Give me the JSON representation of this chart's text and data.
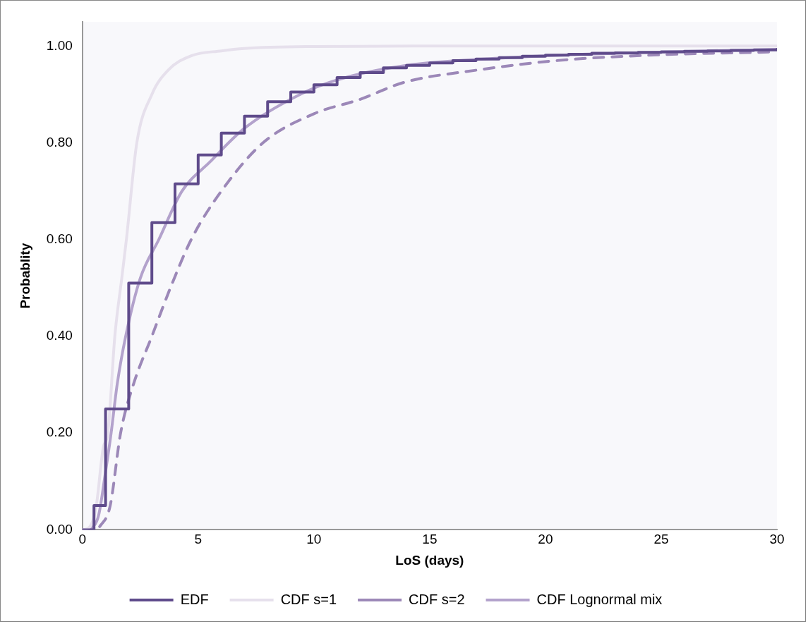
{
  "chart_data": {
    "type": "line",
    "xlabel": "LoS (days)",
    "ylabel": "Probablity",
    "xlim": [
      0,
      30
    ],
    "xticks": [
      0,
      5,
      10,
      15,
      20,
      25,
      30
    ],
    "ylim": [
      0,
      1.05
    ],
    "yticks": [
      {
        "value": 0,
        "label": "0.00"
      },
      {
        "value": 0.2,
        "label": "0.20"
      },
      {
        "value": 0.4,
        "label": "0.40"
      },
      {
        "value": 0.6,
        "label": "0.60"
      },
      {
        "value": 0.8,
        "label": "0.80"
      },
      {
        "value": 1,
        "label": "1.00"
      }
    ],
    "grid": false,
    "legend": "bottom",
    "marker": "none",
    "series": [
      {
        "name": "EDF",
        "type": "step",
        "color": "#5f4b8b",
        "line_style": "solid",
        "x": [
          0,
          0.5,
          1,
          2,
          3,
          4,
          5,
          6,
          7,
          8,
          9,
          10,
          11,
          12,
          13,
          14,
          15,
          16,
          17,
          18,
          19,
          20,
          21,
          22,
          23,
          24,
          25,
          26,
          27,
          28,
          29,
          30
        ],
        "values": [
          0,
          0.05,
          0.25,
          0.51,
          0.635,
          0.715,
          0.775,
          0.82,
          0.855,
          0.885,
          0.905,
          0.92,
          0.935,
          0.945,
          0.955,
          0.96,
          0.965,
          0.97,
          0.973,
          0.976,
          0.979,
          0.981,
          0.983,
          0.985,
          0.986,
          0.987,
          0.988,
          0.989,
          0.99,
          0.991,
          0.992,
          0.993
        ]
      },
      {
        "name": "CDF s=1",
        "color": "#e6e0ec",
        "line_style": "solid",
        "x": [
          0,
          0.3,
          0.6,
          0.9,
          1.1,
          1.4,
          1.7,
          1.9,
          2.35,
          3.0,
          3.7,
          4.7,
          6,
          7,
          10,
          15,
          20,
          25,
          30
        ],
        "values": [
          0,
          0.005,
          0.05,
          0.17,
          0.2,
          0.4,
          0.52,
          0.6,
          0.8,
          0.9,
          0.95,
          0.98,
          0.99,
          0.995,
          0.999,
          1,
          1,
          1,
          1
        ]
      },
      {
        "name": "CDF s=2",
        "color": "#9c88b8",
        "line_style": "dashed",
        "x": [
          0,
          0.5,
          0.8,
          1.2,
          1.65,
          2.2,
          3.0,
          3.8,
          4.7,
          6,
          7.8,
          10,
          12,
          13.9,
          17,
          20.5,
          25,
          30
        ],
        "values": [
          0,
          0,
          0.01,
          0.05,
          0.2,
          0.3,
          0.4,
          0.5,
          0.6,
          0.7,
          0.8,
          0.86,
          0.89,
          0.925,
          0.95,
          0.97,
          0.982,
          0.988
        ]
      },
      {
        "name": "CDF Lognormal mix",
        "color": "#b3a2cc",
        "line_style": "solid",
        "x": [
          0,
          0.4,
          0.7,
          1,
          1.24,
          1.5,
          1.87,
          2.5,
          3.3,
          4.3,
          5.5,
          7,
          9.4,
          11,
          14,
          18,
          21,
          24,
          27,
          30
        ],
        "values": [
          0,
          0.005,
          0.03,
          0.12,
          0.2,
          0.3,
          0.4,
          0.52,
          0.6,
          0.7,
          0.76,
          0.83,
          0.9,
          0.93,
          0.96,
          0.975,
          0.982,
          0.986,
          0.99,
          0.993
        ]
      }
    ]
  }
}
